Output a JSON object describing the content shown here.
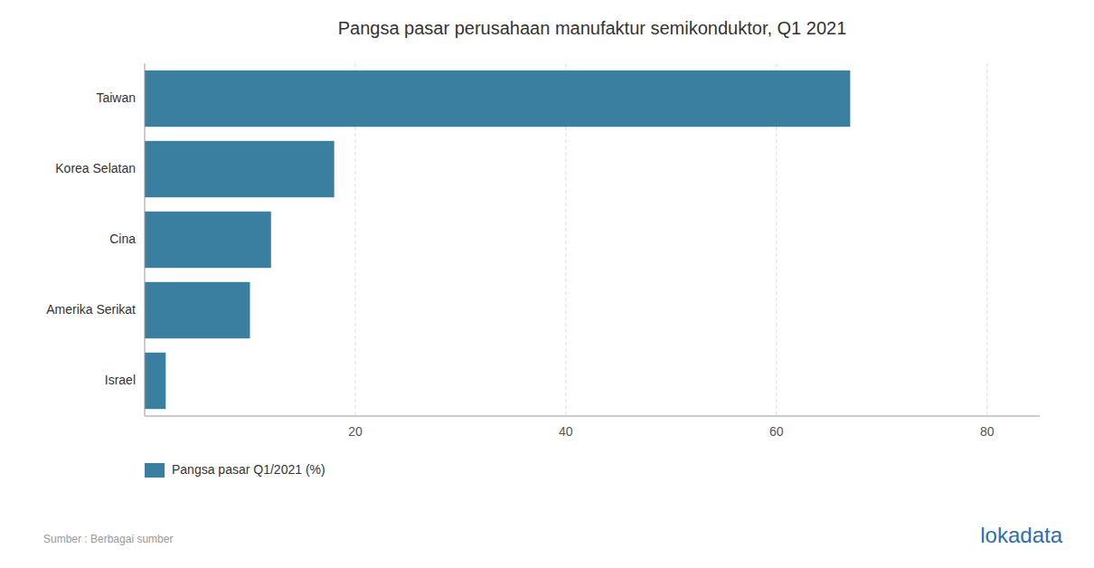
{
  "chart_data": {
    "type": "bar",
    "orientation": "horizontal",
    "title": "Pangsa pasar perusahaan manufaktur semikonduktor, Q1 2021",
    "categories": [
      "Taiwan",
      "Korea Selatan",
      "Cina",
      "Amerika Serikat",
      "Israel"
    ],
    "series": [
      {
        "name": "Pangsa pasar Q1/2021 (%)",
        "color": "#3a7fa0",
        "values": [
          67,
          18,
          12,
          10,
          2
        ]
      }
    ],
    "xlim": [
      0,
      85
    ],
    "xticks": [
      20,
      40,
      60,
      80
    ],
    "grid": true,
    "legend": "bottom",
    "annotations": [
      {
        "text": "Sumber : Berbagai sumber"
      },
      {
        "text": "lokadata",
        "color": "#2d6db5"
      }
    ]
  }
}
